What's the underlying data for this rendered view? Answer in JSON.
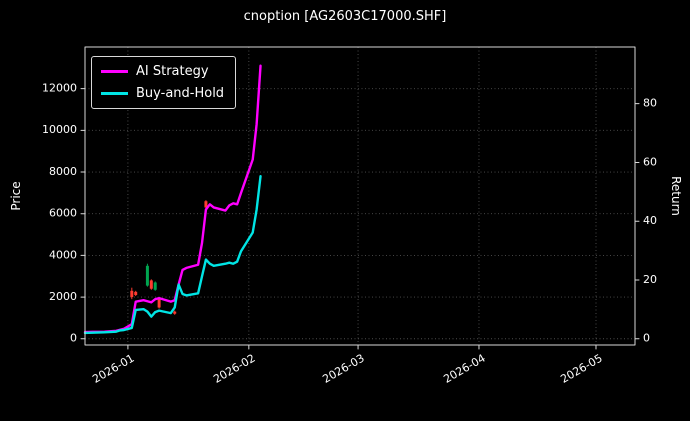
{
  "colors": {
    "background": "#000000",
    "text": "#ffffff",
    "grid": "#4f4f4f",
    "spine": "#d9d9d9",
    "ai_strategy": "#ff00ff",
    "buy_and_hold": "#00e5e5",
    "candle_up": "#00a550",
    "candle_down": "#ff3b30"
  },
  "chart_data": {
    "type": "line",
    "title": "cnoption [AG2603C17000.SHF]",
    "xlabel": "",
    "ylabel_left": "Price",
    "ylabel_right": "Return",
    "grid": true,
    "legend_position": "upper-left",
    "x_range": [
      "2025-12-21",
      "2026-05-11"
    ],
    "x_ticks": [
      {
        "label": "2026-01",
        "date": "2026-01-01"
      },
      {
        "label": "2026-02",
        "date": "2026-02-01"
      },
      {
        "label": "2026-03",
        "date": "2026-03-01"
      },
      {
        "label": "2026-04",
        "date": "2026-04-01"
      },
      {
        "label": "2026-05",
        "date": "2026-05-01"
      }
    ],
    "ylim_left": [
      -300,
      14000
    ],
    "y_ticks_left": [
      0,
      2000,
      4000,
      6000,
      8000,
      10000,
      12000
    ],
    "y_ticks_right": [
      0,
      20,
      40,
      60,
      80
    ],
    "price_per_return_unit": 141,
    "series": [
      {
        "name": "AI Strategy",
        "color": "#ff00ff",
        "points": [
          [
            "2025-12-21",
            320
          ],
          [
            "2025-12-23",
            330
          ],
          [
            "2025-12-26",
            340
          ],
          [
            "2025-12-29",
            380
          ],
          [
            "2025-12-30",
            430
          ],
          [
            "2025-12-31",
            480
          ],
          [
            "2026-01-02",
            700
          ],
          [
            "2026-01-03",
            1780
          ],
          [
            "2026-01-05",
            1850
          ],
          [
            "2026-01-06",
            1800
          ],
          [
            "2026-01-07",
            1750
          ],
          [
            "2026-01-08",
            1900
          ],
          [
            "2026-01-09",
            1950
          ],
          [
            "2026-01-12",
            1780
          ],
          [
            "2026-01-13",
            1850
          ],
          [
            "2026-01-14",
            2600
          ],
          [
            "2026-01-15",
            3300
          ],
          [
            "2026-01-16",
            3400
          ],
          [
            "2026-01-19",
            3550
          ],
          [
            "2026-01-20",
            4600
          ],
          [
            "2026-01-21",
            6200
          ],
          [
            "2026-01-22",
            6450
          ],
          [
            "2026-01-23",
            6300
          ],
          [
            "2026-01-26",
            6150
          ],
          [
            "2026-01-27",
            6400
          ],
          [
            "2026-01-28",
            6500
          ],
          [
            "2026-01-29",
            6450
          ],
          [
            "2026-01-30",
            7000
          ],
          [
            "2026-02-02",
            8600
          ],
          [
            "2026-02-03",
            10300
          ],
          [
            "2026-02-04",
            13100
          ]
        ]
      },
      {
        "name": "Buy-and-Hold",
        "color": "#00e5e5",
        "points": [
          [
            "2025-12-21",
            280
          ],
          [
            "2025-12-23",
            290
          ],
          [
            "2025-12-26",
            310
          ],
          [
            "2025-12-29",
            340
          ],
          [
            "2025-12-30",
            400
          ],
          [
            "2025-12-31",
            420
          ],
          [
            "2026-01-02",
            520
          ],
          [
            "2026-01-03",
            1380
          ],
          [
            "2026-01-05",
            1420
          ],
          [
            "2026-01-06",
            1300
          ],
          [
            "2026-01-07",
            1060
          ],
          [
            "2026-01-08",
            1280
          ],
          [
            "2026-01-09",
            1350
          ],
          [
            "2026-01-12",
            1230
          ],
          [
            "2026-01-13",
            1500
          ],
          [
            "2026-01-14",
            2600
          ],
          [
            "2026-01-15",
            2150
          ],
          [
            "2026-01-16",
            2080
          ],
          [
            "2026-01-19",
            2180
          ],
          [
            "2026-01-20",
            3000
          ],
          [
            "2026-01-21",
            3800
          ],
          [
            "2026-01-22",
            3600
          ],
          [
            "2026-01-23",
            3500
          ],
          [
            "2026-01-26",
            3600
          ],
          [
            "2026-01-27",
            3650
          ],
          [
            "2026-01-28",
            3600
          ],
          [
            "2026-01-29",
            3700
          ],
          [
            "2026-01-30",
            4200
          ],
          [
            "2026-02-02",
            5100
          ],
          [
            "2026-02-03",
            6200
          ],
          [
            "2026-02-04",
            7800
          ]
        ]
      }
    ],
    "candles": [
      {
        "date": "2026-01-02",
        "open": 2300,
        "high": 2450,
        "low": 1900,
        "close": 2000
      },
      {
        "date": "2026-01-03",
        "open": 2250,
        "high": 2300,
        "low": 2050,
        "close": 2100
      },
      {
        "date": "2026-01-06",
        "open": 2550,
        "high": 3600,
        "low": 2500,
        "close": 3500
      },
      {
        "date": "2026-01-07",
        "open": 2800,
        "high": 2850,
        "low": 2350,
        "close": 2400
      },
      {
        "date": "2026-01-08",
        "open": 2350,
        "high": 2750,
        "low": 2300,
        "close": 2700
      },
      {
        "date": "2026-01-09",
        "open": 1900,
        "high": 1950,
        "low": 1450,
        "close": 1500
      },
      {
        "date": "2026-01-13",
        "open": 1300,
        "high": 1350,
        "low": 1150,
        "close": 1200
      },
      {
        "date": "2026-01-21",
        "open": 6600,
        "high": 6650,
        "low": 6250,
        "close": 6300
      }
    ]
  }
}
